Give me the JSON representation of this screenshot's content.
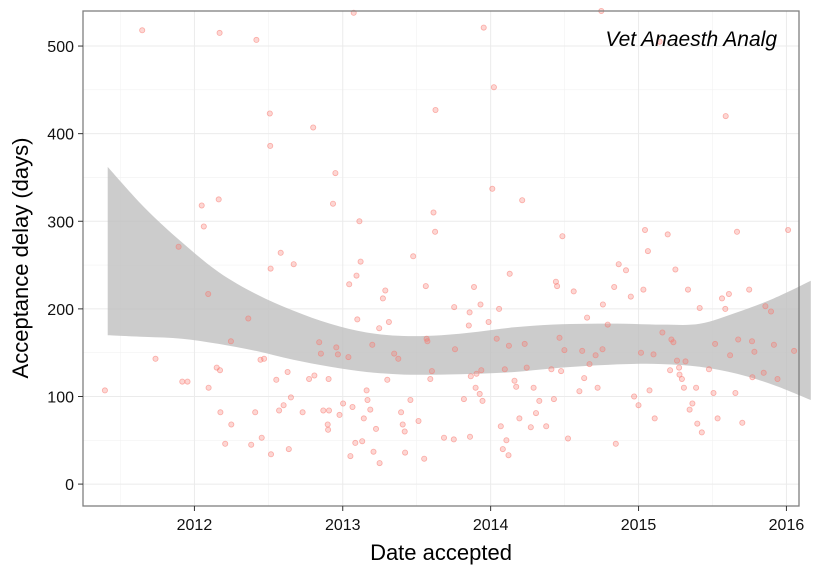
{
  "chart_data": {
    "type": "scatter",
    "title": "",
    "annotation": "Vet Anaesth Analg",
    "xlabel": "Date accepted",
    "ylabel": "Acceptance delay (days)",
    "xlim": [
      "2011-04-01",
      "2016-02-01"
    ],
    "ylim": [
      -25,
      540
    ],
    "x_ticks": [
      "2012-01-01",
      "2013-01-01",
      "2014-01-01",
      "2015-01-01",
      "2016-01-01"
    ],
    "x_tick_labels": [
      "2012",
      "2013",
      "2014",
      "2015",
      "2016"
    ],
    "y_ticks": [
      0,
      100,
      200,
      300,
      400,
      500
    ],
    "y_tick_labels": [
      "0",
      "100",
      "200",
      "300",
      "400",
      "500"
    ],
    "grid": true,
    "point_color": "#f8766d",
    "band_color": "#bfbfbf",
    "series": [
      {
        "points": [
          [
            "2011-05-25",
            107
          ],
          [
            "2011-08-25",
            518
          ],
          [
            "2011-09-27",
            143
          ],
          [
            "2011-11-23",
            271
          ],
          [
            "2011-12-02",
            117
          ],
          [
            "2011-12-15",
            117
          ],
          [
            "2012-01-19",
            318
          ],
          [
            "2012-01-24",
            294
          ],
          [
            "2012-02-04",
            217
          ],
          [
            "2012-02-05",
            110
          ],
          [
            "2012-02-25",
            133
          ],
          [
            "2012-03-01",
            325
          ],
          [
            "2012-03-03",
            515
          ],
          [
            "2012-03-04",
            130
          ],
          [
            "2012-03-05",
            82
          ],
          [
            "2012-03-17",
            46
          ],
          [
            "2012-03-31",
            163
          ],
          [
            "2012-04-01",
            68
          ],
          [
            "2012-05-13",
            189
          ],
          [
            "2012-05-20",
            45
          ],
          [
            "2012-05-30",
            82
          ],
          [
            "2012-06-02",
            507
          ],
          [
            "2012-06-12",
            142
          ],
          [
            "2012-06-15",
            53
          ],
          [
            "2012-06-21",
            143
          ],
          [
            "2012-07-05",
            423
          ],
          [
            "2012-07-06",
            386
          ],
          [
            "2012-07-07",
            246
          ],
          [
            "2012-07-08",
            34
          ],
          [
            "2012-07-21",
            119
          ],
          [
            "2012-07-28",
            84
          ],
          [
            "2012-08-01",
            264
          ],
          [
            "2012-08-08",
            90
          ],
          [
            "2012-08-18",
            128
          ],
          [
            "2012-08-21",
            40
          ],
          [
            "2012-08-26",
            99
          ],
          [
            "2012-09-02",
            251
          ],
          [
            "2012-09-24",
            82
          ],
          [
            "2012-10-10",
            120
          ],
          [
            "2012-10-20",
            407
          ],
          [
            "2012-10-23",
            124
          ],
          [
            "2012-11-04",
            162
          ],
          [
            "2012-11-08",
            149
          ],
          [
            "2012-11-14",
            84
          ],
          [
            "2012-11-25",
            68
          ],
          [
            "2012-11-26",
            62
          ],
          [
            "2012-11-27",
            120
          ],
          [
            "2012-11-28",
            84
          ],
          [
            "2012-12-08",
            320
          ],
          [
            "2012-12-14",
            355
          ],
          [
            "2012-12-16",
            156
          ],
          [
            "2012-12-20",
            148
          ],
          [
            "2012-12-24",
            79
          ],
          [
            "2013-01-02",
            92
          ],
          [
            "2013-01-15",
            145
          ],
          [
            "2013-01-17",
            228
          ],
          [
            "2013-01-20",
            32
          ],
          [
            "2013-01-25",
            88
          ],
          [
            "2013-01-28",
            538
          ],
          [
            "2013-02-01",
            47
          ],
          [
            "2013-02-04",
            238
          ],
          [
            "2013-02-06",
            188
          ],
          [
            "2013-02-11",
            300
          ],
          [
            "2013-02-14",
            254
          ],
          [
            "2013-02-18",
            49
          ],
          [
            "2013-02-22",
            75
          ],
          [
            "2013-03-01",
            107
          ],
          [
            "2013-03-03",
            96
          ],
          [
            "2013-03-10",
            85
          ],
          [
            "2013-03-15",
            159
          ],
          [
            "2013-03-18",
            37
          ],
          [
            "2013-03-24",
            63
          ],
          [
            "2013-04-01",
            178
          ],
          [
            "2013-04-02",
            24
          ],
          [
            "2013-04-10",
            212
          ],
          [
            "2013-04-16",
            221
          ],
          [
            "2013-04-21",
            119
          ],
          [
            "2013-04-25",
            185
          ],
          [
            "2013-05-08",
            149
          ],
          [
            "2013-05-18",
            143
          ],
          [
            "2013-05-25",
            82
          ],
          [
            "2013-05-29",
            68
          ],
          [
            "2013-06-03",
            60
          ],
          [
            "2013-06-04",
            36
          ],
          [
            "2013-06-17",
            96
          ],
          [
            "2013-06-24",
            260
          ],
          [
            "2013-07-07",
            72
          ],
          [
            "2013-07-21",
            29
          ],
          [
            "2013-07-25",
            226
          ],
          [
            "2013-07-27",
            166
          ],
          [
            "2013-07-29",
            163
          ],
          [
            "2013-08-05",
            120
          ],
          [
            "2013-08-09",
            129
          ],
          [
            "2013-08-13",
            310
          ],
          [
            "2013-08-17",
            288
          ],
          [
            "2013-08-18",
            427
          ],
          [
            "2013-09-08",
            53
          ],
          [
            "2013-10-02",
            51
          ],
          [
            "2013-10-03",
            202
          ],
          [
            "2013-10-05",
            154
          ],
          [
            "2013-10-27",
            97
          ],
          [
            "2013-11-08",
            181
          ],
          [
            "2013-11-10",
            196
          ],
          [
            "2013-11-11",
            54
          ],
          [
            "2013-11-13",
            123
          ],
          [
            "2013-11-21",
            225
          ],
          [
            "2013-11-25",
            110
          ],
          [
            "2013-11-27",
            126
          ],
          [
            "2013-12-05",
            103
          ],
          [
            "2013-12-07",
            205
          ],
          [
            "2013-12-09",
            130
          ],
          [
            "2013-12-12",
            95
          ],
          [
            "2013-12-15",
            521
          ],
          [
            "2013-12-27",
            185
          ],
          [
            "2014-01-05",
            337
          ],
          [
            "2014-01-09",
            453
          ],
          [
            "2014-01-16",
            166
          ],
          [
            "2014-01-22",
            200
          ],
          [
            "2014-01-26",
            66
          ],
          [
            "2014-01-31",
            40
          ],
          [
            "2014-02-05",
            131
          ],
          [
            "2014-02-09",
            50
          ],
          [
            "2014-02-14",
            33
          ],
          [
            "2014-02-15",
            158
          ],
          [
            "2014-02-17",
            240
          ],
          [
            "2014-03-01",
            118
          ],
          [
            "2014-03-05",
            111
          ],
          [
            "2014-03-13",
            75
          ],
          [
            "2014-03-20",
            324
          ],
          [
            "2014-03-26",
            160
          ],
          [
            "2014-03-31",
            133
          ],
          [
            "2014-04-10",
            65
          ],
          [
            "2014-04-17",
            110
          ],
          [
            "2014-04-23",
            81
          ],
          [
            "2014-05-01",
            95
          ],
          [
            "2014-05-18",
            66
          ],
          [
            "2014-05-31",
            131
          ],
          [
            "2014-06-06",
            97
          ],
          [
            "2014-06-11",
            231
          ],
          [
            "2014-06-14",
            226
          ],
          [
            "2014-06-20",
            167
          ],
          [
            "2014-06-24",
            129
          ],
          [
            "2014-06-27",
            283
          ],
          [
            "2014-07-02",
            153
          ],
          [
            "2014-07-11",
            52
          ],
          [
            "2014-07-25",
            220
          ],
          [
            "2014-08-08",
            106
          ],
          [
            "2014-08-15",
            152
          ],
          [
            "2014-08-20",
            121
          ],
          [
            "2014-08-27",
            190
          ],
          [
            "2014-09-02",
            137
          ],
          [
            "2014-09-17",
            147
          ],
          [
            "2014-09-22",
            110
          ],
          [
            "2014-10-01",
            540
          ],
          [
            "2014-10-04",
            154
          ],
          [
            "2014-10-05",
            205
          ],
          [
            "2014-10-17",
            182
          ],
          [
            "2014-11-02",
            225
          ],
          [
            "2014-11-06",
            46
          ],
          [
            "2014-11-13",
            251
          ],
          [
            "2014-12-01",
            244
          ],
          [
            "2014-12-13",
            214
          ],
          [
            "2014-12-21",
            100
          ],
          [
            "2015-01-01",
            90
          ],
          [
            "2015-01-07",
            150
          ],
          [
            "2015-01-13",
            222
          ],
          [
            "2015-01-17",
            290
          ],
          [
            "2015-01-24",
            266
          ],
          [
            "2015-01-28",
            107
          ],
          [
            "2015-02-07",
            148
          ],
          [
            "2015-02-10",
            75
          ],
          [
            "2015-02-22",
            505
          ],
          [
            "2015-03-01",
            173
          ],
          [
            "2015-03-14",
            285
          ],
          [
            "2015-03-20",
            130
          ],
          [
            "2015-03-23",
            165
          ],
          [
            "2015-03-28",
            162
          ],
          [
            "2015-04-02",
            245
          ],
          [
            "2015-04-06",
            141
          ],
          [
            "2015-04-11",
            133
          ],
          [
            "2015-04-12",
            125
          ],
          [
            "2015-04-18",
            120
          ],
          [
            "2015-04-23",
            110
          ],
          [
            "2015-04-27",
            140
          ],
          [
            "2015-05-03",
            222
          ],
          [
            "2015-05-07",
            85
          ],
          [
            "2015-05-14",
            92
          ],
          [
            "2015-05-23",
            110
          ],
          [
            "2015-05-26",
            69
          ],
          [
            "2015-06-01",
            201
          ],
          [
            "2015-06-06",
            59
          ],
          [
            "2015-06-24",
            131
          ],
          [
            "2015-07-05",
            104
          ],
          [
            "2015-07-09",
            160
          ],
          [
            "2015-07-15",
            75
          ],
          [
            "2015-07-26",
            212
          ],
          [
            "2015-08-03",
            200
          ],
          [
            "2015-08-04",
            420
          ],
          [
            "2015-08-12",
            217
          ],
          [
            "2015-08-15",
            147
          ],
          [
            "2015-08-28",
            104
          ],
          [
            "2015-09-01",
            288
          ],
          [
            "2015-09-04",
            165
          ],
          [
            "2015-09-14",
            70
          ],
          [
            "2015-10-01",
            222
          ],
          [
            "2015-10-08",
            163
          ],
          [
            "2015-10-09",
            122
          ],
          [
            "2015-10-14",
            151
          ],
          [
            "2015-11-06",
            127
          ],
          [
            "2015-11-10",
            203
          ],
          [
            "2015-11-24",
            197
          ],
          [
            "2015-12-01",
            159
          ],
          [
            "2015-12-10",
            120
          ],
          [
            "2016-01-05",
            290
          ],
          [
            "2016-01-20",
            152
          ],
          [
            "2016-02-24",
            163
          ]
        ]
      }
    ],
    "smooth_band": {
      "x": [
        "2011-06-01",
        "2011-09-01",
        "2011-12-01",
        "2012-03-01",
        "2012-06-01",
        "2012-09-01",
        "2012-12-01",
        "2013-03-01",
        "2013-06-01",
        "2013-09-01",
        "2013-12-01",
        "2014-03-01",
        "2014-06-01",
        "2014-09-01",
        "2014-12-01",
        "2015-03-01",
        "2015-06-01",
        "2015-09-01",
        "2015-12-01",
        "2016-03-01"
      ],
      "upper": [
        362,
        315,
        276,
        242,
        217,
        198,
        183,
        173,
        169,
        170,
        174,
        179,
        182,
        183,
        183,
        182,
        183,
        196,
        212,
        232
      ],
      "lower": [
        170,
        168,
        166,
        160,
        152,
        142,
        134,
        128,
        125,
        125,
        126,
        128,
        132,
        135,
        137,
        137,
        134,
        126,
        113,
        96
      ]
    }
  }
}
